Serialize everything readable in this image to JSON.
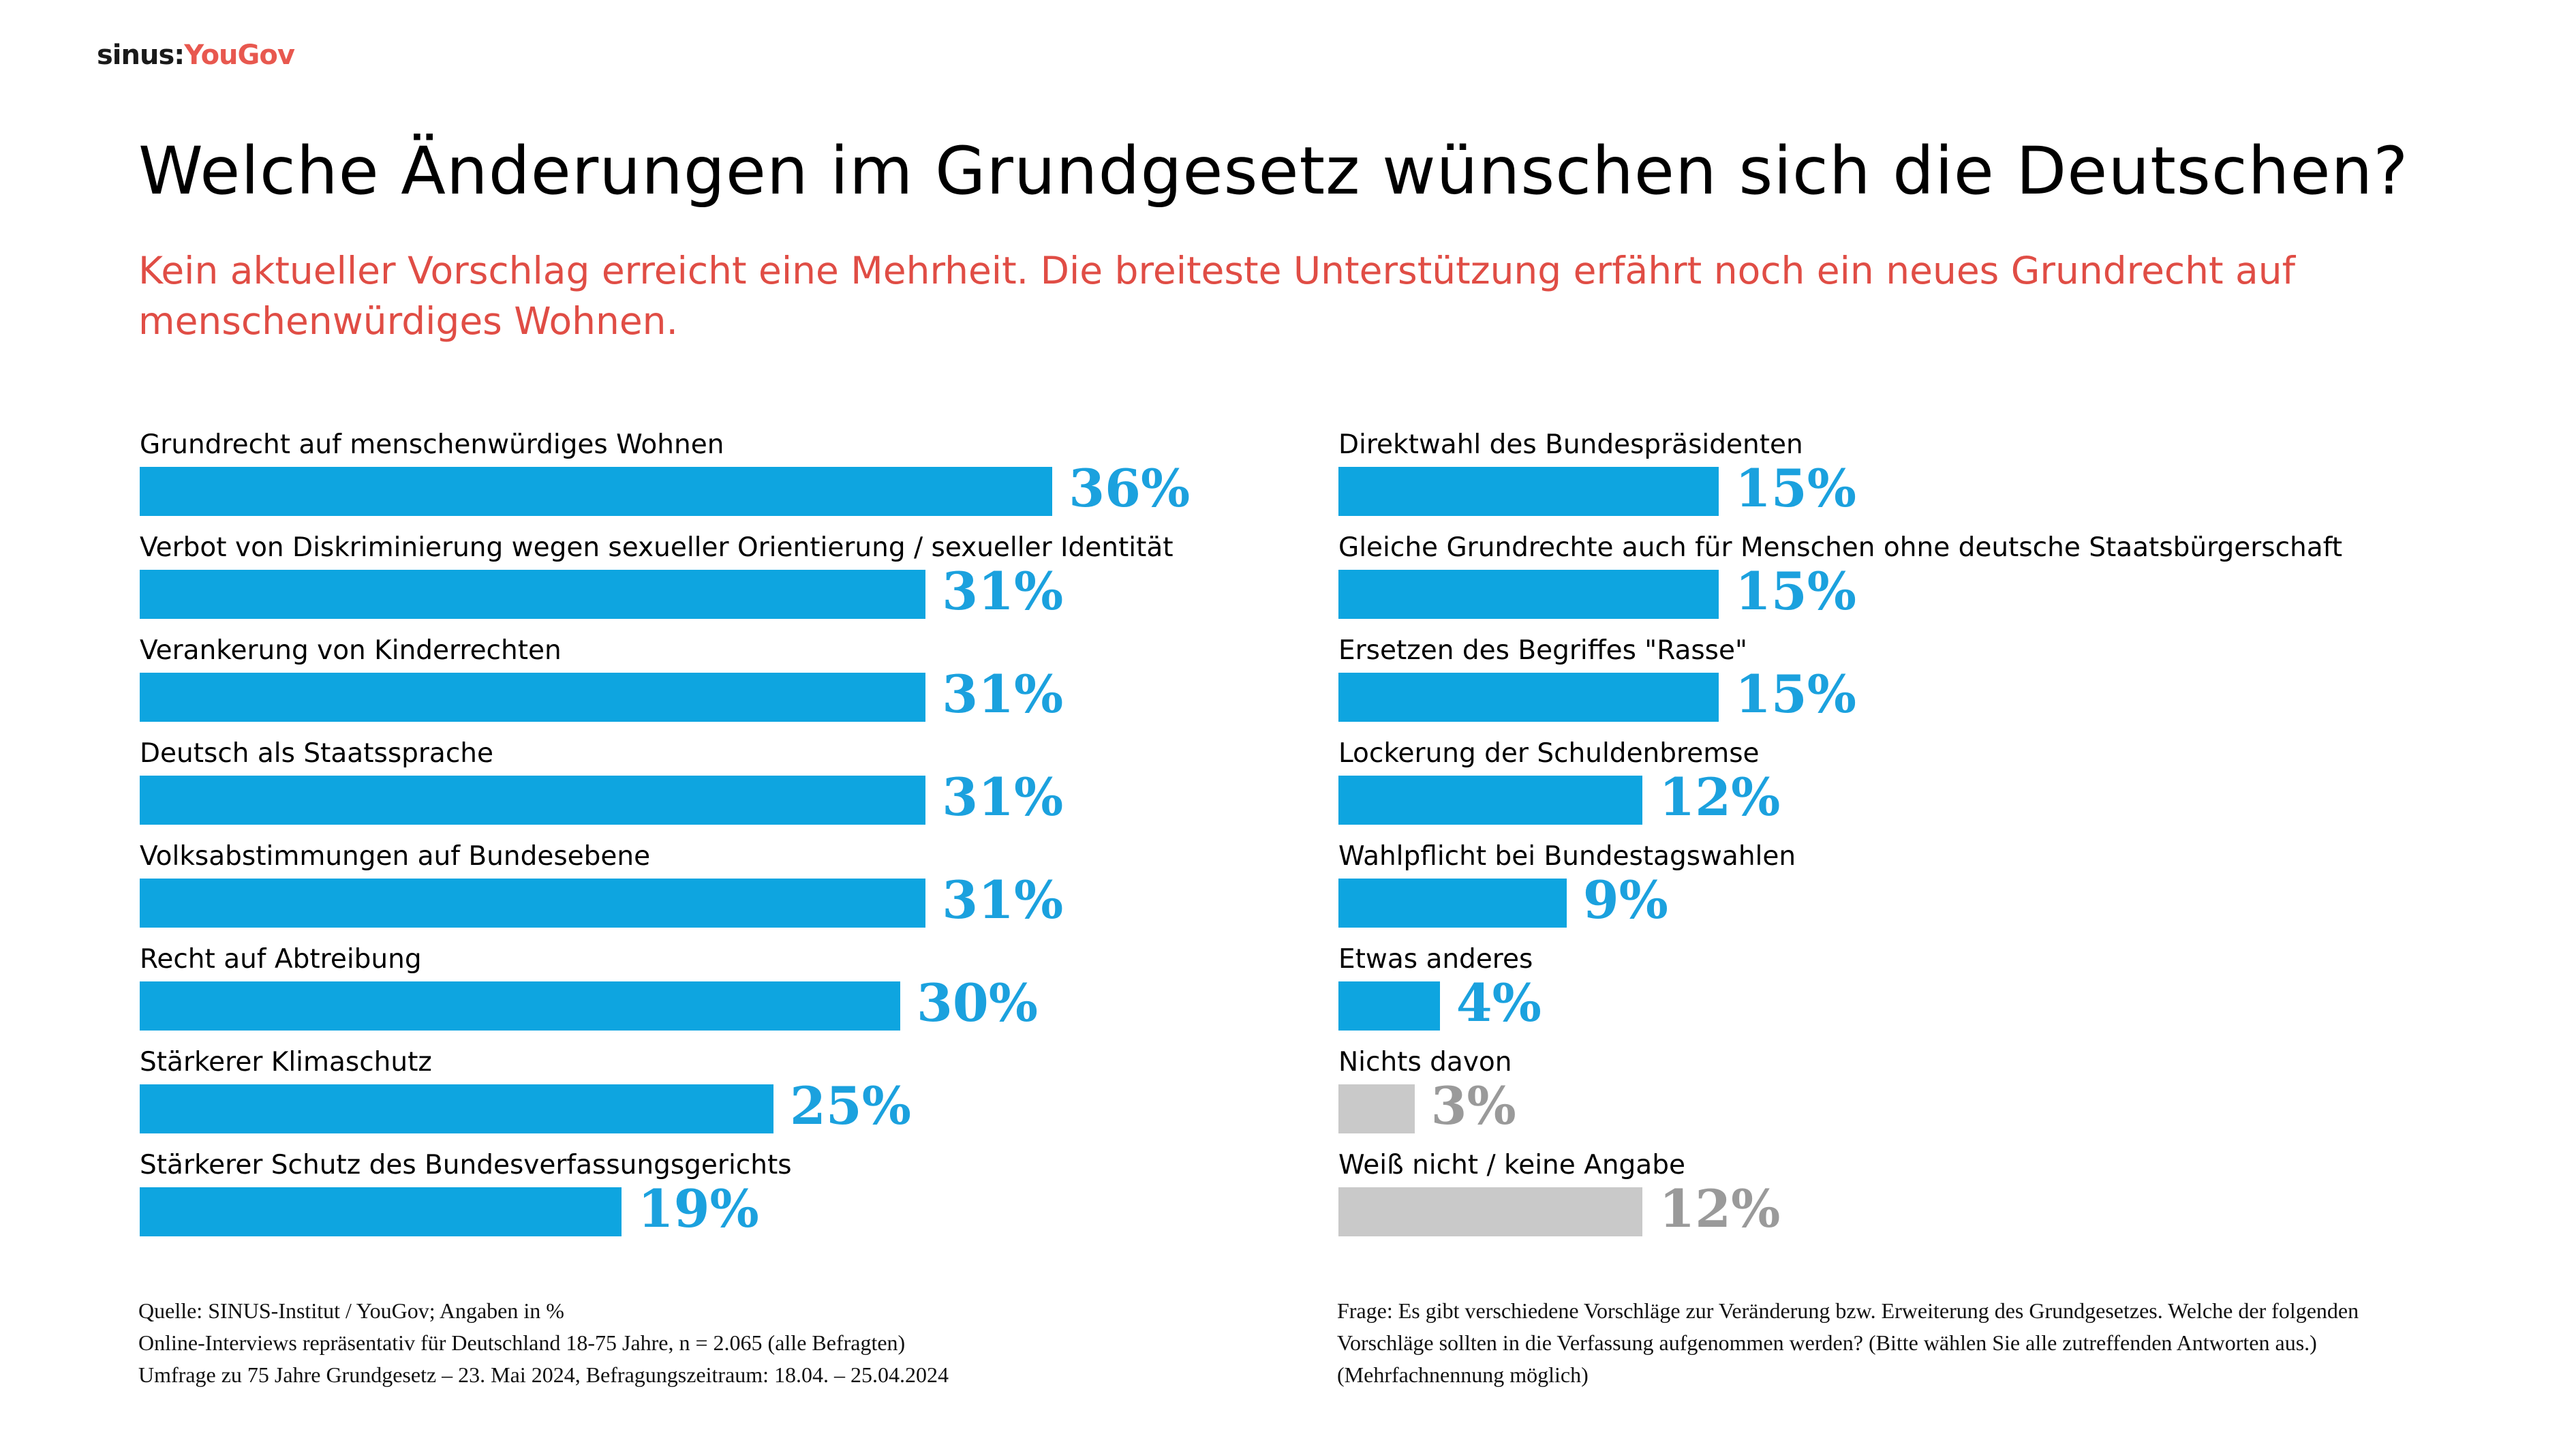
{
  "logo": {
    "part1": "sinus:",
    "part2": "YouGov"
  },
  "title": "Welche Änderungen im Grundgesetz wünschen sich die Deutschen?",
  "subtitle": "Kein aktueller Vorschlag erreicht eine Mehrheit. Die breiteste Unterstützung erfährt noch ein neues Grundrecht auf menschenwürdiges Wohnen.",
  "colors": {
    "bar_main": "#0ea5e0",
    "bar_other": "#c9c9c9",
    "value_main": "#1ba1de",
    "value_other": "#9a9a9a",
    "subtitle": "#e04d45"
  },
  "chart_data": {
    "type": "bar",
    "orientation": "horizontal",
    "title": "Welche Änderungen im Grundgesetz wünschen sich die Deutschen?",
    "unit": "%",
    "xlabel": "",
    "ylabel": "",
    "xlim": [
      0,
      100
    ],
    "grid": false,
    "legend": "none",
    "categories": [
      "Grundrecht auf menschenwürdiges Wohnen",
      "Verbot von Diskriminierung wegen sexueller Orientierung / sexueller Identität",
      "Verankerung von Kinderrechten",
      "Deutsch als Staatssprache",
      "Volksabstimmungen auf Bundesebene",
      "Recht auf Abtreibung",
      "Stärkerer Klimaschutz",
      "Stärkerer Schutz des Bundesverfassungsgerichts",
      "Direktwahl des Bundespräsidenten",
      "Gleiche Grundrechte auch für Menschen ohne deutsche Staatsbürgerschaft",
      "Ersetzen des Begriffes \"Rasse\"",
      "Lockerung der Schuldenbremse",
      "Wahlpflicht bei Bundestagswahlen",
      "Etwas anderes",
      "Nichts davon",
      "Weiß nicht / keine Angabe"
    ],
    "values": [
      36,
      31,
      31,
      31,
      31,
      30,
      25,
      19,
      15,
      15,
      15,
      12,
      9,
      4,
      3,
      12
    ],
    "value_labels": [
      "36%",
      "31%",
      "31%",
      "31%",
      "31%",
      "30%",
      "25%",
      "19%",
      "15%",
      "15%",
      "15%",
      "12%",
      "9%",
      "4%",
      "3%",
      "12%"
    ],
    "groups": [
      "main",
      "main",
      "main",
      "main",
      "main",
      "main",
      "main",
      "main",
      "main",
      "main",
      "main",
      "main",
      "main",
      "main",
      "other",
      "other"
    ],
    "columns": {
      "left": [
        0,
        1,
        2,
        3,
        4,
        5,
        6,
        7
      ],
      "right": [
        8,
        9,
        10,
        11,
        12,
        13,
        14,
        15
      ]
    }
  },
  "footer": {
    "source_lines": [
      "Quelle: SINUS-Institut / YouGov; Angaben in %",
      "Online-Interviews repräsentativ für Deutschland 18-75 Jahre, n = 2.065 (alle Befragten)",
      "Umfrage zu 75 Jahre Grundgesetz – 23. Mai 2024, Befragungszeitraum: 18.04. – 25.04.2024"
    ],
    "question": "Frage: Es gibt verschiedene Vorschläge zur Veränderung bzw. Erweiterung des Grundgesetzes. Welche der folgenden Vorschläge sollten in die Verfassung aufgenommen werden? (Bitte wählen Sie alle zutreffenden Antworten aus.) (Mehrfachnennung möglich)"
  }
}
